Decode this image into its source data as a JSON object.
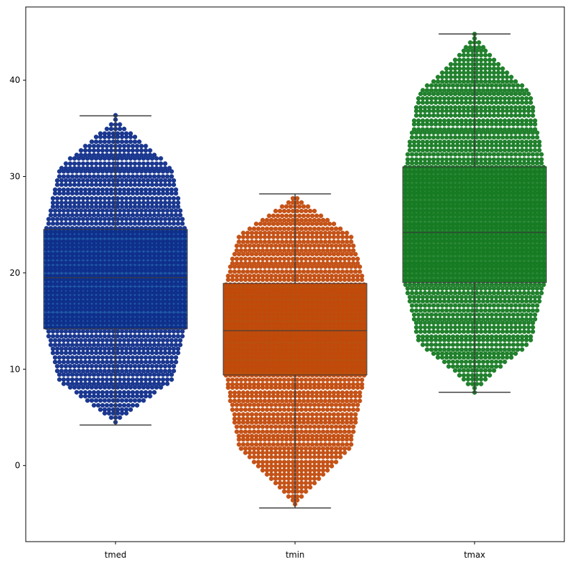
{
  "chart_data": {
    "type": "box",
    "title": "",
    "xlabel": "",
    "ylabel": "",
    "ylim": [
      -7.9,
      47.6
    ],
    "yticks": [
      0,
      10,
      20,
      30,
      40
    ],
    "grid": false,
    "legend": "none",
    "overlay": "swarm",
    "categories": [
      "tmed",
      "tmin",
      "tmax"
    ],
    "series": [
      {
        "category": "tmed",
        "min": 4.2,
        "q1": 14.2,
        "median": 19.5,
        "q3": 24.5,
        "max": 36.3,
        "color": "#0f2d8a",
        "box_color": "#1f5aa6"
      },
      {
        "category": "tmin",
        "min": -4.4,
        "q1": 9.4,
        "median": 14.0,
        "q3": 18.9,
        "max": 28.2,
        "color": "#c24a0c",
        "box_color": "#b5530f"
      },
      {
        "category": "tmax",
        "min": 7.6,
        "q1": 19.0,
        "median": 24.2,
        "q3": 31.0,
        "max": 44.8,
        "color": "#157a22",
        "box_color": "#2e8a3a"
      }
    ]
  }
}
